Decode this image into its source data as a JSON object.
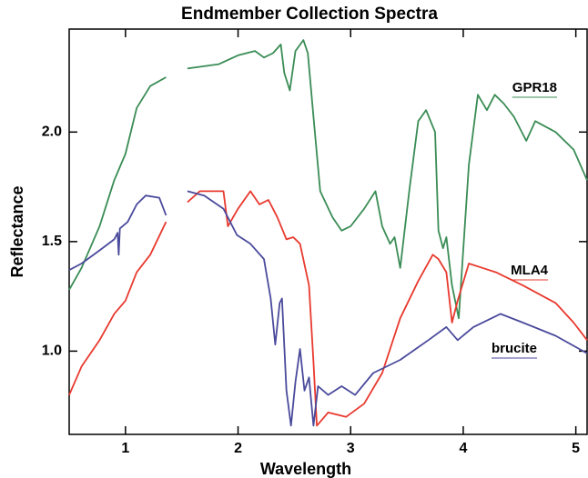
{
  "chart_data": {
    "type": "line",
    "title": "Endmember Collection Spectra",
    "x_label": "Wavelength",
    "y_label": "Reflectance",
    "xlim": [
      0.5,
      5.1
    ],
    "ylim": [
      0.62,
      2.47
    ],
    "xticks": [
      1,
      2,
      3,
      4,
      5
    ],
    "yticks": [
      {
        "value": 1,
        "label": "1.0"
      },
      {
        "value": 1.5,
        "label": "1.5"
      },
      {
        "value": 2,
        "label": "2.0"
      }
    ],
    "series": [
      {
        "name": "GPR18",
        "color": "#3a8c55",
        "x": [
          0.5,
          0.61,
          0.77,
          0.9,
          1.0,
          1.1,
          1.22,
          1.36,
          1.45,
          1.55,
          1.83,
          2.0,
          2.15,
          2.23,
          2.31,
          2.38,
          2.41,
          2.46,
          2.51,
          2.58,
          2.62,
          2.67,
          2.73,
          2.84,
          2.92,
          3.0,
          3.12,
          3.22,
          3.28,
          3.35,
          3.39,
          3.44,
          3.52,
          3.6,
          3.67,
          3.75,
          3.78,
          3.82,
          3.85,
          3.9,
          3.96,
          4.05,
          4.13,
          4.21,
          4.28,
          4.36,
          4.45,
          4.56,
          4.64,
          4.82,
          4.98,
          5.1
        ],
        "values": [
          1.28,
          1.38,
          1.57,
          1.78,
          1.9,
          2.11,
          2.21,
          2.25,
          null,
          2.29,
          2.31,
          2.35,
          2.37,
          2.34,
          2.36,
          2.4,
          2.27,
          2.19,
          2.37,
          2.42,
          2.36,
          2.07,
          1.73,
          1.61,
          1.55,
          1.57,
          1.65,
          1.73,
          1.57,
          1.49,
          1.52,
          1.38,
          1.73,
          2.05,
          2.1,
          2.0,
          1.55,
          1.47,
          1.52,
          1.3,
          1.15,
          1.85,
          2.17,
          2.1,
          2.17,
          2.13,
          2.07,
          1.96,
          2.05,
          2.0,
          1.92,
          1.78
        ]
      },
      {
        "name": "MLA4",
        "color": "#e8392e",
        "x": [
          0.5,
          0.61,
          0.77,
          0.9,
          1.0,
          1.1,
          1.22,
          1.36,
          1.45,
          1.55,
          1.66,
          1.87,
          1.91,
          2.0,
          2.11,
          2.19,
          2.27,
          2.35,
          2.43,
          2.49,
          2.55,
          2.63,
          2.67,
          2.7,
          2.8,
          2.96,
          3.12,
          3.28,
          3.44,
          3.6,
          3.73,
          3.78,
          3.85,
          3.9,
          3.95,
          4.05,
          4.17,
          4.29,
          4.53,
          4.82,
          4.98,
          5.1
        ],
        "values": [
          0.8,
          0.93,
          1.05,
          1.17,
          1.23,
          1.36,
          1.44,
          1.59,
          null,
          1.68,
          1.73,
          1.73,
          1.57,
          1.65,
          1.73,
          1.67,
          1.69,
          1.61,
          1.51,
          1.52,
          1.49,
          1.3,
          0.95,
          0.66,
          0.72,
          0.7,
          0.76,
          0.9,
          1.15,
          1.32,
          1.44,
          1.42,
          1.36,
          1.13,
          1.23,
          1.4,
          1.38,
          1.36,
          1.3,
          1.22,
          1.13,
          1.05
        ]
      },
      {
        "name": "brucite",
        "color": "#4a4a9c",
        "x": [
          0.5,
          0.61,
          0.77,
          0.9,
          0.93,
          0.94,
          0.95,
          1.02,
          1.1,
          1.18,
          1.3,
          1.36,
          1.45,
          1.55,
          1.7,
          1.87,
          1.99,
          2.11,
          2.23,
          2.29,
          2.33,
          2.37,
          2.39,
          2.43,
          2.47,
          2.51,
          2.55,
          2.59,
          2.63,
          2.67,
          2.71,
          2.8,
          2.92,
          3.04,
          3.2,
          3.44,
          3.69,
          3.85,
          3.95,
          4.09,
          4.33,
          4.53,
          4.82,
          5.1
        ],
        "values": [
          1.37,
          1.4,
          1.46,
          1.51,
          1.54,
          1.44,
          1.56,
          1.59,
          1.67,
          1.71,
          1.7,
          1.62,
          null,
          1.73,
          1.71,
          1.65,
          1.53,
          1.49,
          1.42,
          1.24,
          1.03,
          1.22,
          1.24,
          0.82,
          0.66,
          0.86,
          1.01,
          0.82,
          0.88,
          0.66,
          0.84,
          0.8,
          0.84,
          0.8,
          0.9,
          0.96,
          1.05,
          1.11,
          1.05,
          1.11,
          1.17,
          1.13,
          1.07,
          0.99
        ]
      }
    ]
  }
}
